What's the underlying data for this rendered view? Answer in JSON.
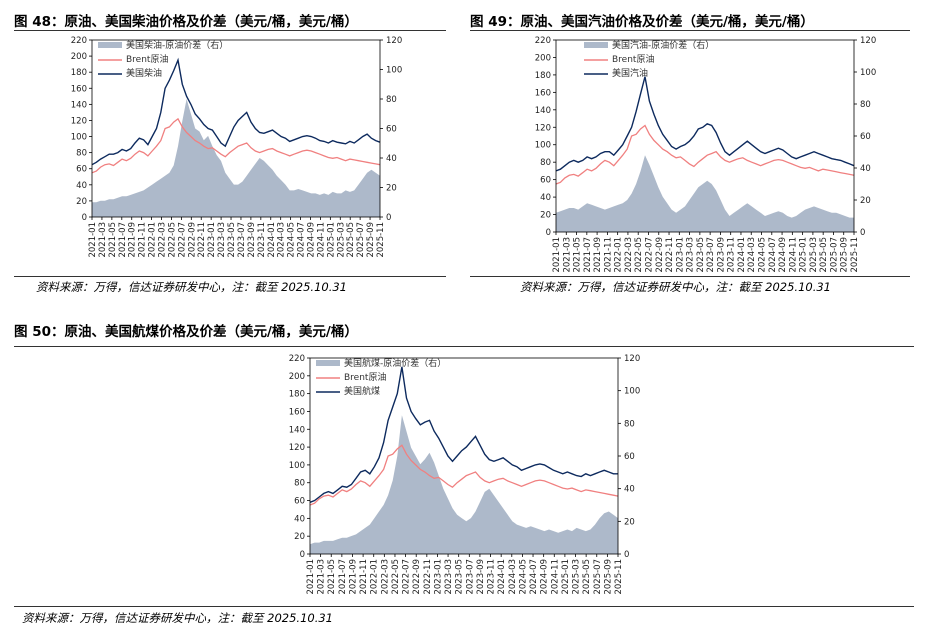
{
  "figures": [
    {
      "title": "图 48：原油、美国柴油价格及价差（美元/桶，美元/桶）",
      "source": "资料来源：万得，信达证券研发中心，注：截至 2025.10.31"
    },
    {
      "title": "图 49：原油、美国汽油价格及价差（美元/桶，美元/桶）",
      "source": "资料来源：万得，信达证券研发中心，注：截至 2025.10.31"
    },
    {
      "title": "图 50：原油、美国航煤价格及价差（美元/桶，美元/桶）",
      "source": "资料来源：万得，信达证券研发中心，注：截至 2025.10.31"
    }
  ],
  "colors": {
    "spread": "#adb9ca",
    "brent": "#f08080",
    "product": "#0d2a5e"
  },
  "chart_data": [
    {
      "type": "line",
      "x_ticks": [
        "2021-01",
        "2021-03",
        "2021-05",
        "2021-07",
        "2021-09",
        "2021-11",
        "2022-01",
        "2022-03",
        "2022-05",
        "2022-07",
        "2022-09",
        "2022-11",
        "2023-01",
        "2023-03",
        "2023-05",
        "2023-07",
        "2023-09",
        "2023-11",
        "2024-01",
        "2024-03",
        "2024-05",
        "2024-07",
        "2024-09",
        "2024-11",
        "2025-01",
        "2025-03",
        "2025-05",
        "2025-07",
        "2025-09",
        "2025-11"
      ],
      "ylim_left": [
        0,
        220
      ],
      "yticks_left": [
        0,
        20,
        40,
        60,
        80,
        100,
        120,
        140,
        160,
        180,
        200,
        220
      ],
      "ylim_right": [
        0,
        120
      ],
      "yticks_right": [
        0,
        20,
        40,
        60,
        80,
        100,
        120
      ],
      "legend_position": "top-left",
      "series": [
        {
          "name": "美国柴油-原油价差（右）",
          "axis": "right",
          "kind": "area",
          "values": [
            10,
            10,
            11,
            11,
            12,
            12,
            13,
            14,
            14,
            15,
            16,
            17,
            18,
            20,
            22,
            24,
            26,
            28,
            30,
            35,
            48,
            65,
            80,
            70,
            60,
            58,
            52,
            55,
            48,
            42,
            38,
            30,
            26,
            22,
            22,
            24,
            28,
            32,
            36,
            40,
            38,
            35,
            32,
            28,
            25,
            22,
            18,
            18,
            19,
            18,
            17,
            16,
            16,
            15,
            16,
            15,
            17,
            16,
            16,
            18,
            17,
            18,
            22,
            26,
            30,
            32,
            30,
            28
          ]
        },
        {
          "name": "Brent原油",
          "axis": "left",
          "kind": "line",
          "values": [
            55,
            57,
            62,
            65,
            66,
            64,
            68,
            72,
            70,
            73,
            78,
            82,
            80,
            76,
            82,
            88,
            95,
            110,
            112,
            118,
            122,
            112,
            105,
            100,
            95,
            92,
            88,
            85,
            86,
            82,
            78,
            75,
            80,
            84,
            88,
            90,
            92,
            86,
            82,
            80,
            82,
            84,
            85,
            82,
            80,
            78,
            76,
            78,
            80,
            82,
            83,
            82,
            80,
            78,
            76,
            74,
            73,
            74,
            72,
            70,
            72,
            71,
            70,
            69,
            68,
            67,
            66,
            65
          ]
        },
        {
          "name": "美国柴油",
          "axis": "left",
          "kind": "line",
          "values": [
            65,
            68,
            72,
            75,
            78,
            78,
            80,
            84,
            82,
            85,
            92,
            98,
            96,
            90,
            100,
            110,
            130,
            160,
            170,
            182,
            195,
            165,
            150,
            140,
            128,
            122,
            115,
            110,
            108,
            100,
            92,
            88,
            100,
            112,
            120,
            125,
            130,
            118,
            110,
            105,
            104,
            106,
            108,
            104,
            100,
            98,
            94,
            96,
            98,
            100,
            101,
            100,
            98,
            95,
            94,
            92,
            95,
            93,
            92,
            91,
            94,
            92,
            96,
            100,
            103,
            98,
            95,
            93
          ]
        }
      ]
    },
    {
      "type": "line",
      "x_ticks": [
        "2021-01",
        "2021-03",
        "2021-05",
        "2021-07",
        "2021-09",
        "2021-11",
        "2022-01",
        "2022-03",
        "2022-05",
        "2022-07",
        "2022-09",
        "2022-11",
        "2023-01",
        "2023-03",
        "2023-05",
        "2023-07",
        "2023-09",
        "2023-11",
        "2024-01",
        "2024-03",
        "2024-05",
        "2024-07",
        "2024-09",
        "2024-11",
        "2025-01",
        "2025-03",
        "2025-05",
        "2025-07",
        "2025-09",
        "2025-11"
      ],
      "ylim_left": [
        0,
        220
      ],
      "yticks_left": [
        0,
        20,
        40,
        60,
        80,
        100,
        120,
        140,
        160,
        180,
        200,
        220
      ],
      "ylim_right": [
        0,
        120
      ],
      "yticks_right": [
        0,
        20,
        40,
        60,
        80,
        100,
        120
      ],
      "legend_position": "top-left",
      "series": [
        {
          "name": "美国汽油-原油价差（右）",
          "axis": "right",
          "kind": "area",
          "values": [
            12,
            13,
            14,
            15,
            15,
            14,
            16,
            18,
            17,
            16,
            15,
            14,
            15,
            16,
            17,
            18,
            20,
            24,
            30,
            38,
            48,
            42,
            35,
            28,
            22,
            18,
            14,
            12,
            14,
            16,
            20,
            24,
            28,
            30,
            32,
            30,
            26,
            20,
            14,
            10,
            12,
            14,
            16,
            18,
            16,
            14,
            12,
            10,
            11,
            12,
            13,
            12,
            10,
            9,
            10,
            12,
            14,
            15,
            16,
            15,
            14,
            13,
            12,
            12,
            11,
            10,
            9,
            9
          ]
        },
        {
          "name": "Brent原油",
          "axis": "left",
          "kind": "line",
          "values": [
            55,
            57,
            62,
            65,
            66,
            64,
            68,
            72,
            70,
            73,
            78,
            82,
            80,
            76,
            82,
            88,
            95,
            110,
            112,
            118,
            122,
            112,
            105,
            100,
            95,
            92,
            88,
            85,
            86,
            82,
            78,
            75,
            80,
            84,
            88,
            90,
            92,
            86,
            82,
            80,
            82,
            84,
            85,
            82,
            80,
            78,
            76,
            78,
            80,
            82,
            83,
            82,
            80,
            78,
            76,
            74,
            73,
            74,
            72,
            70,
            72,
            71,
            70,
            69,
            68,
            67,
            66,
            65
          ]
        },
        {
          "name": "美国汽油",
          "axis": "left",
          "kind": "line",
          "values": [
            70,
            72,
            76,
            80,
            82,
            80,
            82,
            86,
            84,
            86,
            90,
            92,
            92,
            88,
            94,
            100,
            110,
            120,
            138,
            158,
            178,
            150,
            135,
            122,
            112,
            105,
            98,
            95,
            98,
            100,
            104,
            110,
            118,
            120,
            124,
            122,
            114,
            102,
            92,
            88,
            92,
            96,
            100,
            104,
            100,
            96,
            92,
            90,
            92,
            94,
            96,
            94,
            90,
            86,
            84,
            86,
            88,
            90,
            92,
            90,
            88,
            86,
            84,
            83,
            82,
            80,
            78,
            76
          ]
        }
      ]
    },
    {
      "type": "line",
      "x_ticks": [
        "2021-01",
        "2021-03",
        "2021-05",
        "2021-07",
        "2021-09",
        "2021-11",
        "2022-01",
        "2022-03",
        "2022-05",
        "2022-07",
        "2022-09",
        "2022-11",
        "2023-01",
        "2023-03",
        "2023-05",
        "2023-07",
        "2023-09",
        "2023-11",
        "2024-01",
        "2024-03",
        "2024-05",
        "2024-07",
        "2024-09",
        "2024-11",
        "2025-01",
        "2025-03",
        "2025-05",
        "2025-07",
        "2025-09",
        "2025-11"
      ],
      "ylim_left": [
        0,
        220
      ],
      "yticks_left": [
        0,
        20,
        40,
        60,
        80,
        100,
        120,
        140,
        160,
        180,
        200,
        220
      ],
      "ylim_right": [
        0,
        120
      ],
      "yticks_right": [
        0,
        20,
        40,
        60,
        80,
        100,
        120
      ],
      "legend_position": "top-left",
      "series": [
        {
          "name": "美国航煤-原油价差（右）",
          "axis": "right",
          "kind": "area",
          "values": [
            6,
            7,
            7,
            8,
            8,
            8,
            9,
            10,
            10,
            11,
            12,
            14,
            16,
            18,
            22,
            26,
            30,
            36,
            45,
            60,
            85,
            75,
            65,
            60,
            55,
            58,
            62,
            56,
            48,
            40,
            34,
            28,
            24,
            22,
            20,
            22,
            26,
            32,
            38,
            40,
            36,
            32,
            28,
            24,
            20,
            18,
            17,
            16,
            17,
            16,
            15,
            14,
            15,
            14,
            13,
            14,
            15,
            14,
            16,
            15,
            14,
            15,
            18,
            22,
            25,
            26,
            24,
            22
          ]
        },
        {
          "name": "Brent原油",
          "axis": "left",
          "kind": "line",
          "values": [
            55,
            57,
            62,
            65,
            66,
            64,
            68,
            72,
            70,
            73,
            78,
            82,
            80,
            76,
            82,
            88,
            95,
            110,
            112,
            118,
            122,
            112,
            105,
            100,
            95,
            92,
            88,
            85,
            86,
            82,
            78,
            75,
            80,
            84,
            88,
            90,
            92,
            86,
            82,
            80,
            82,
            84,
            85,
            82,
            80,
            78,
            76,
            78,
            80,
            82,
            83,
            82,
            80,
            78,
            76,
            74,
            73,
            74,
            72,
            70,
            72,
            71,
            70,
            69,
            68,
            67,
            66,
            65
          ]
        },
        {
          "name": "美国航煤",
          "axis": "left",
          "kind": "line",
          "values": [
            58,
            60,
            64,
            68,
            70,
            68,
            72,
            76,
            75,
            78,
            85,
            92,
            94,
            90,
            98,
            108,
            125,
            150,
            165,
            180,
            210,
            175,
            160,
            152,
            145,
            148,
            150,
            138,
            130,
            120,
            110,
            104,
            110,
            116,
            120,
            126,
            132,
            122,
            112,
            106,
            104,
            106,
            108,
            104,
            100,
            98,
            94,
            96,
            98,
            100,
            101,
            100,
            97,
            94,
            92,
            90,
            92,
            90,
            88,
            87,
            90,
            88,
            90,
            92,
            94,
            92,
            90,
            90
          ]
        }
      ]
    }
  ]
}
